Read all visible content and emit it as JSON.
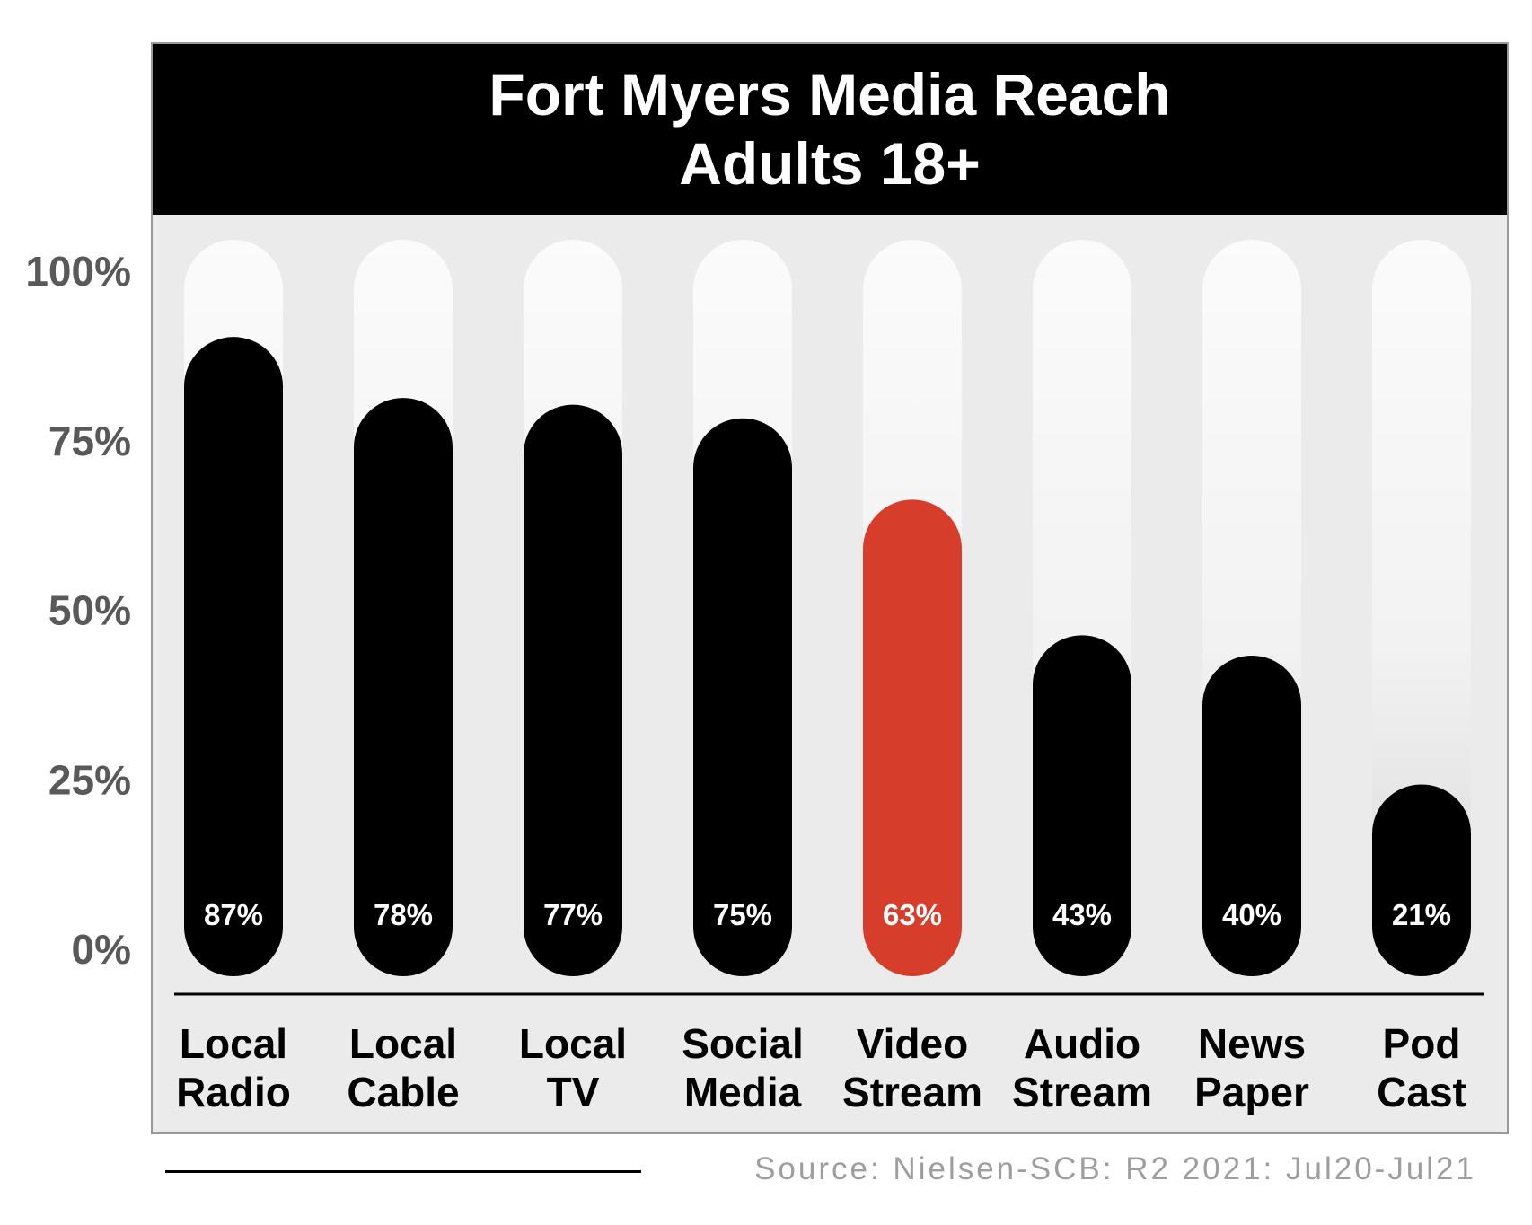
{
  "chart_data": {
    "type": "bar",
    "title": "Fort Myers Media Reach",
    "subtitle": "Adults 18+",
    "categories": [
      [
        "Local",
        "Radio"
      ],
      [
        "Local",
        "Cable"
      ],
      [
        "Local",
        "TV"
      ],
      [
        "Social",
        "Media"
      ],
      [
        "Video",
        "Stream"
      ],
      [
        "Audio",
        "Stream"
      ],
      [
        "News",
        "Paper"
      ],
      [
        "Pod",
        "Cast"
      ]
    ],
    "values": [
      87,
      78,
      77,
      75,
      63,
      43,
      40,
      21
    ],
    "value_labels": [
      "87%",
      "78%",
      "77%",
      "75%",
      "63%",
      "43%",
      "40%",
      "21%"
    ],
    "highlight_index": 4,
    "yticks": [
      0,
      25,
      50,
      75,
      100
    ],
    "ytick_labels": [
      "0%",
      "25%",
      "50%",
      "75%",
      "100%"
    ],
    "ylim": [
      0,
      100
    ],
    "colors": {
      "bar": "#000000",
      "highlight": "#d63d2a",
      "track_top": "#fbfbfb",
      "track_bottom": "#d9d9d9",
      "tick_text": "#595959",
      "value_text": "#ffffff"
    }
  },
  "source": "Source: Nielsen-SCB: R2 2021: Jul20-Jul21"
}
